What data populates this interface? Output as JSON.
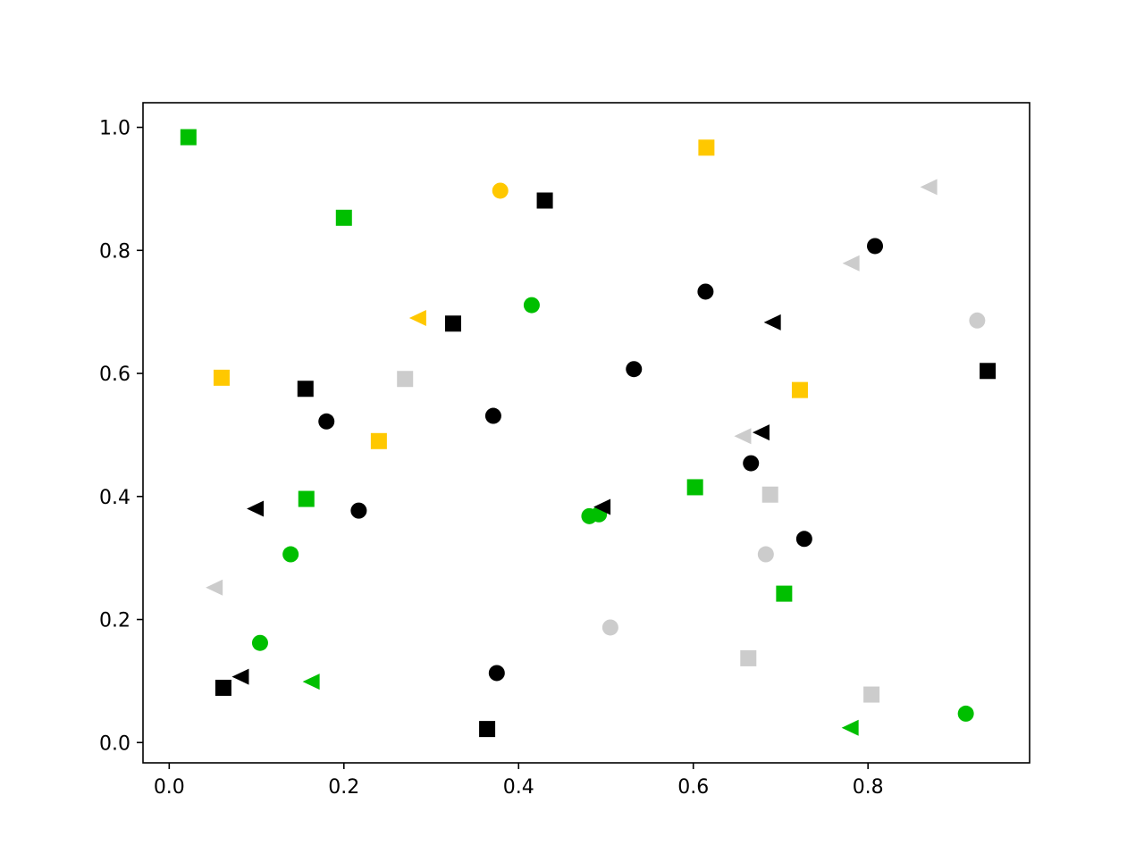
{
  "chart_data": {
    "type": "scatter",
    "title": "",
    "xlabel": "",
    "ylabel": "",
    "xlim": [
      -0.03,
      0.985
    ],
    "ylim": [
      -0.033,
      1.04
    ],
    "grid": false,
    "legend": "none",
    "xticks": [
      "0.0",
      "0.2",
      "0.4",
      "0.6",
      "0.8"
    ],
    "yticks": [
      "0.0",
      "0.2",
      "0.4",
      "0.6",
      "0.8",
      "1.0"
    ],
    "colors": {
      "black": "#000000",
      "green": "#00bf00",
      "yellow": "#ffc800",
      "gray": "#cccccc"
    },
    "series": [
      {
        "marker": "circle",
        "color": "black",
        "points": [
          [
            0.18,
            0.522
          ],
          [
            0.217,
            0.377
          ],
          [
            0.371,
            0.531
          ],
          [
            0.375,
            0.113
          ],
          [
            0.532,
            0.607
          ],
          [
            0.614,
            0.733
          ],
          [
            0.666,
            0.454
          ],
          [
            0.727,
            0.331
          ],
          [
            0.808,
            0.807
          ]
        ]
      },
      {
        "marker": "circle",
        "color": "green",
        "points": [
          [
            0.104,
            0.162
          ],
          [
            0.139,
            0.306
          ],
          [
            0.415,
            0.711
          ],
          [
            0.481,
            0.368
          ],
          [
            0.492,
            0.371
          ],
          [
            0.912,
            0.047
          ]
        ]
      },
      {
        "marker": "circle",
        "color": "yellow",
        "points": [
          [
            0.379,
            0.897
          ]
        ]
      },
      {
        "marker": "circle",
        "color": "gray",
        "points": [
          [
            0.505,
            0.187
          ],
          [
            0.683,
            0.306
          ],
          [
            0.925,
            0.686
          ]
        ]
      },
      {
        "marker": "square",
        "color": "black",
        "points": [
          [
            0.062,
            0.089
          ],
          [
            0.156,
            0.575
          ],
          [
            0.325,
            0.681
          ],
          [
            0.364,
            0.022
          ],
          [
            0.43,
            0.881
          ],
          [
            0.937,
            0.604
          ]
        ]
      },
      {
        "marker": "square",
        "color": "green",
        "points": [
          [
            0.022,
            0.984
          ],
          [
            0.157,
            0.396
          ],
          [
            0.2,
            0.853
          ],
          [
            0.602,
            0.415
          ],
          [
            0.704,
            0.242
          ]
        ]
      },
      {
        "marker": "square",
        "color": "yellow",
        "points": [
          [
            0.06,
            0.593
          ],
          [
            0.24,
            0.49
          ],
          [
            0.615,
            0.967
          ],
          [
            0.722,
            0.573
          ]
        ]
      },
      {
        "marker": "square",
        "color": "gray",
        "points": [
          [
            0.27,
            0.591
          ],
          [
            0.663,
            0.137
          ],
          [
            0.688,
            0.403
          ],
          [
            0.804,
            0.078
          ]
        ]
      },
      {
        "marker": "triangle-left",
        "color": "black",
        "points": [
          [
            0.082,
            0.107
          ],
          [
            0.099,
            0.38
          ],
          [
            0.496,
            0.383
          ],
          [
            0.678,
            0.504
          ],
          [
            0.691,
            0.683
          ]
        ]
      },
      {
        "marker": "triangle-left",
        "color": "green",
        "points": [
          [
            0.163,
            0.099
          ],
          [
            0.78,
            0.024
          ]
        ]
      },
      {
        "marker": "triangle-left",
        "color": "yellow",
        "points": [
          [
            0.285,
            0.69
          ]
        ]
      },
      {
        "marker": "triangle-left",
        "color": "gray",
        "points": [
          [
            0.052,
            0.252
          ],
          [
            0.657,
            0.498
          ],
          [
            0.781,
            0.779
          ],
          [
            0.87,
            0.903
          ]
        ]
      }
    ]
  }
}
